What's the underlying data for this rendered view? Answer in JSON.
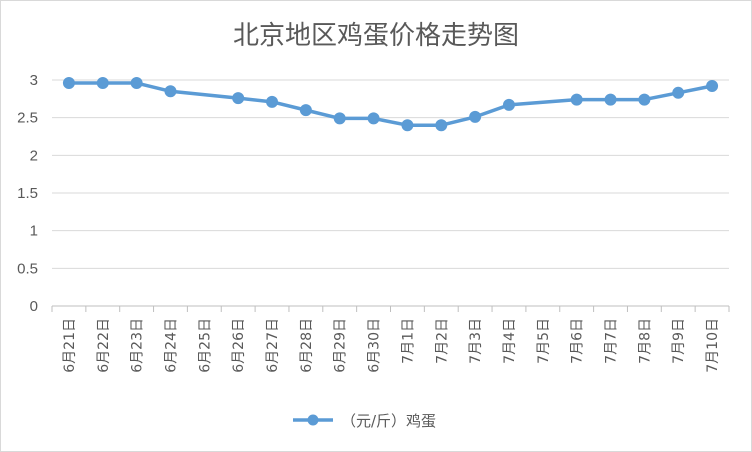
{
  "chart_data": {
    "type": "line",
    "title": "北京地区鸡蛋价格走势图",
    "categories": [
      "6月21日",
      "6月22日",
      "6月23日",
      "6月24日",
      "6月25日",
      "6月26日",
      "6月27日",
      "6月28日",
      "6月29日",
      "6月30日",
      "7月1日",
      "7月2日",
      "7月3日",
      "7月4日",
      "7月5日",
      "7月6日",
      "7月7日",
      "7月8日",
      "7月9日",
      "7月10日"
    ],
    "series": [
      {
        "name": "（元/斤）鸡蛋",
        "color": "#5b9bd5",
        "values": [
          2.96,
          2.96,
          2.96,
          2.85,
          null,
          2.76,
          2.71,
          2.6,
          2.49,
          2.49,
          2.4,
          2.4,
          2.51,
          2.67,
          null,
          2.74,
          2.74,
          2.74,
          2.83,
          2.92
        ]
      }
    ],
    "ylim": [
      0,
      3
    ],
    "yticks": [
      "0",
      "0.5",
      "1",
      "1.5",
      "2",
      "2.5",
      "3"
    ],
    "ytick_values": [
      0,
      0.5,
      1,
      1.5,
      2,
      2.5,
      3
    ],
    "grid": true,
    "legend": "bottom",
    "gap_display": "connect"
  }
}
